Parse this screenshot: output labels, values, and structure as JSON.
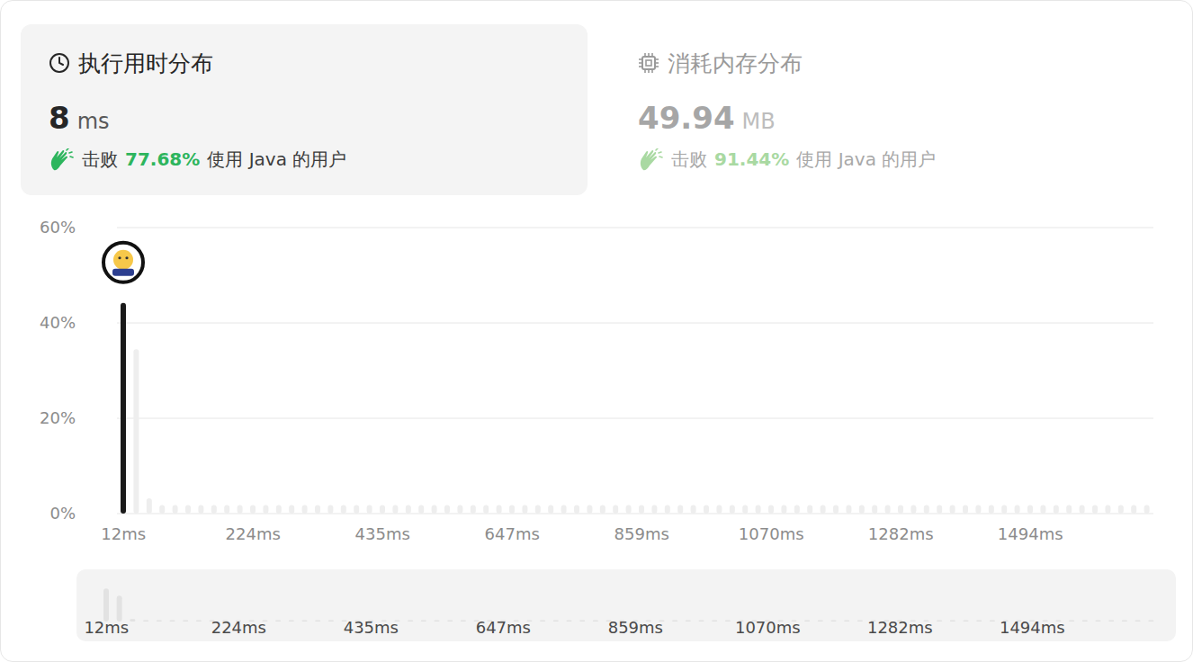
{
  "runtime": {
    "title": "执行用时分布",
    "value": "8",
    "unit": "ms",
    "beat_label": "击败",
    "beat_percent": "77.68%",
    "beat_suffix": "使用 Java 的用户"
  },
  "memory": {
    "title": "消耗内存分布",
    "value": "49.94",
    "unit": "MB",
    "beat_label": "击败",
    "beat_percent": "91.44%",
    "beat_suffix": "使用 Java 的用户"
  },
  "chart_data": {
    "type": "bar",
    "categories": [
      "12ms",
      null,
      null,
      null,
      null,
      null,
      null,
      null,
      null,
      null,
      "224ms",
      null,
      null,
      null,
      null,
      null,
      null,
      null,
      null,
      null,
      "435ms",
      null,
      null,
      null,
      null,
      null,
      null,
      null,
      null,
      null,
      "647ms",
      null,
      null,
      null,
      null,
      null,
      null,
      null,
      null,
      null,
      "859ms",
      null,
      null,
      null,
      null,
      null,
      null,
      null,
      null,
      null,
      "1070ms",
      null,
      null,
      null,
      null,
      null,
      null,
      null,
      null,
      null,
      "1282ms",
      null,
      null,
      null,
      null,
      null,
      null,
      null,
      null,
      null,
      "1494ms",
      null,
      null,
      null,
      null,
      null,
      null,
      null,
      null,
      null
    ],
    "values": [
      44.2,
      34.5,
      3.2,
      1.8,
      1.8,
      1.8,
      1.8,
      1.8,
      1.8,
      1.8,
      1.8,
      1.8,
      1.8,
      1.8,
      1.8,
      1.8,
      1.8,
      1.8,
      1.8,
      1.8,
      1.8,
      1.8,
      1.8,
      1.8,
      1.8,
      1.8,
      1.8,
      1.8,
      1.8,
      1.8,
      1.8,
      1.8,
      1.8,
      1.8,
      1.8,
      1.8,
      1.8,
      1.8,
      1.8,
      1.8,
      1.8,
      1.8,
      1.8,
      1.8,
      1.8,
      1.8,
      1.8,
      1.8,
      1.8,
      1.8,
      1.8,
      1.8,
      1.8,
      1.8,
      1.8,
      1.8,
      1.8,
      1.8,
      1.8,
      1.8,
      1.8,
      1.8,
      1.8,
      1.8,
      1.8,
      1.8,
      1.8,
      1.8,
      1.8,
      1.8,
      1.8,
      1.8,
      1.8,
      1.8,
      1.8,
      1.8,
      1.8,
      1.8,
      1.8,
      1.8
    ],
    "colors": [
      "#1a1a1a",
      "#eeeeee",
      "#eeeeee",
      "#eeeeee",
      "#eeeeee",
      "#eeeeee",
      "#eeeeee",
      "#eeeeee",
      "#eeeeee",
      "#eeeeee",
      "#eeeeee",
      "#eeeeee",
      "#eeeeee",
      "#eeeeee",
      "#eeeeee",
      "#eeeeee",
      "#eeeeee",
      "#eeeeee",
      "#eeeeee",
      "#eeeeee",
      "#eeeeee",
      "#eeeeee",
      "#eeeeee",
      "#eeeeee",
      "#eeeeee",
      "#eeeeee",
      "#eeeeee",
      "#eeeeee",
      "#eeeeee",
      "#eeeeee",
      "#eeeeee",
      "#eeeeee",
      "#eeeeee",
      "#eeeeee",
      "#eeeeee",
      "#eeeeee",
      "#eeeeee",
      "#eeeeee",
      "#eeeeee",
      "#eeeeee",
      "#eeeeee",
      "#eeeeee",
      "#eeeeee",
      "#eeeeee",
      "#eeeeee",
      "#eeeeee",
      "#eeeeee",
      "#eeeeee",
      "#eeeeee",
      "#eeeeee",
      "#eeeeee",
      "#eeeeee",
      "#eeeeee",
      "#eeeeee",
      "#eeeeee",
      "#eeeeee",
      "#eeeeee",
      "#eeeeee",
      "#eeeeee",
      "#eeeeee",
      "#eeeeee",
      "#eeeeee",
      "#eeeeee",
      "#eeeeee",
      "#eeeeee",
      "#eeeeee",
      "#eeeeee",
      "#eeeeee",
      "#eeeeee",
      "#eeeeee",
      "#eeeeee",
      "#eeeeee",
      "#eeeeee",
      "#eeeeee",
      "#eeeeee",
      "#eeeeee",
      "#eeeeee",
      "#eeeeee",
      "#eeeeee",
      "#eeeeee"
    ],
    "ylim": [
      0,
      60
    ],
    "yticks": [
      {
        "value": 0,
        "label": "0%"
      },
      {
        "value": 20,
        "label": "20%"
      },
      {
        "value": 40,
        "label": "40%"
      },
      {
        "value": 60,
        "label": "60%"
      }
    ],
    "grid": true
  }
}
